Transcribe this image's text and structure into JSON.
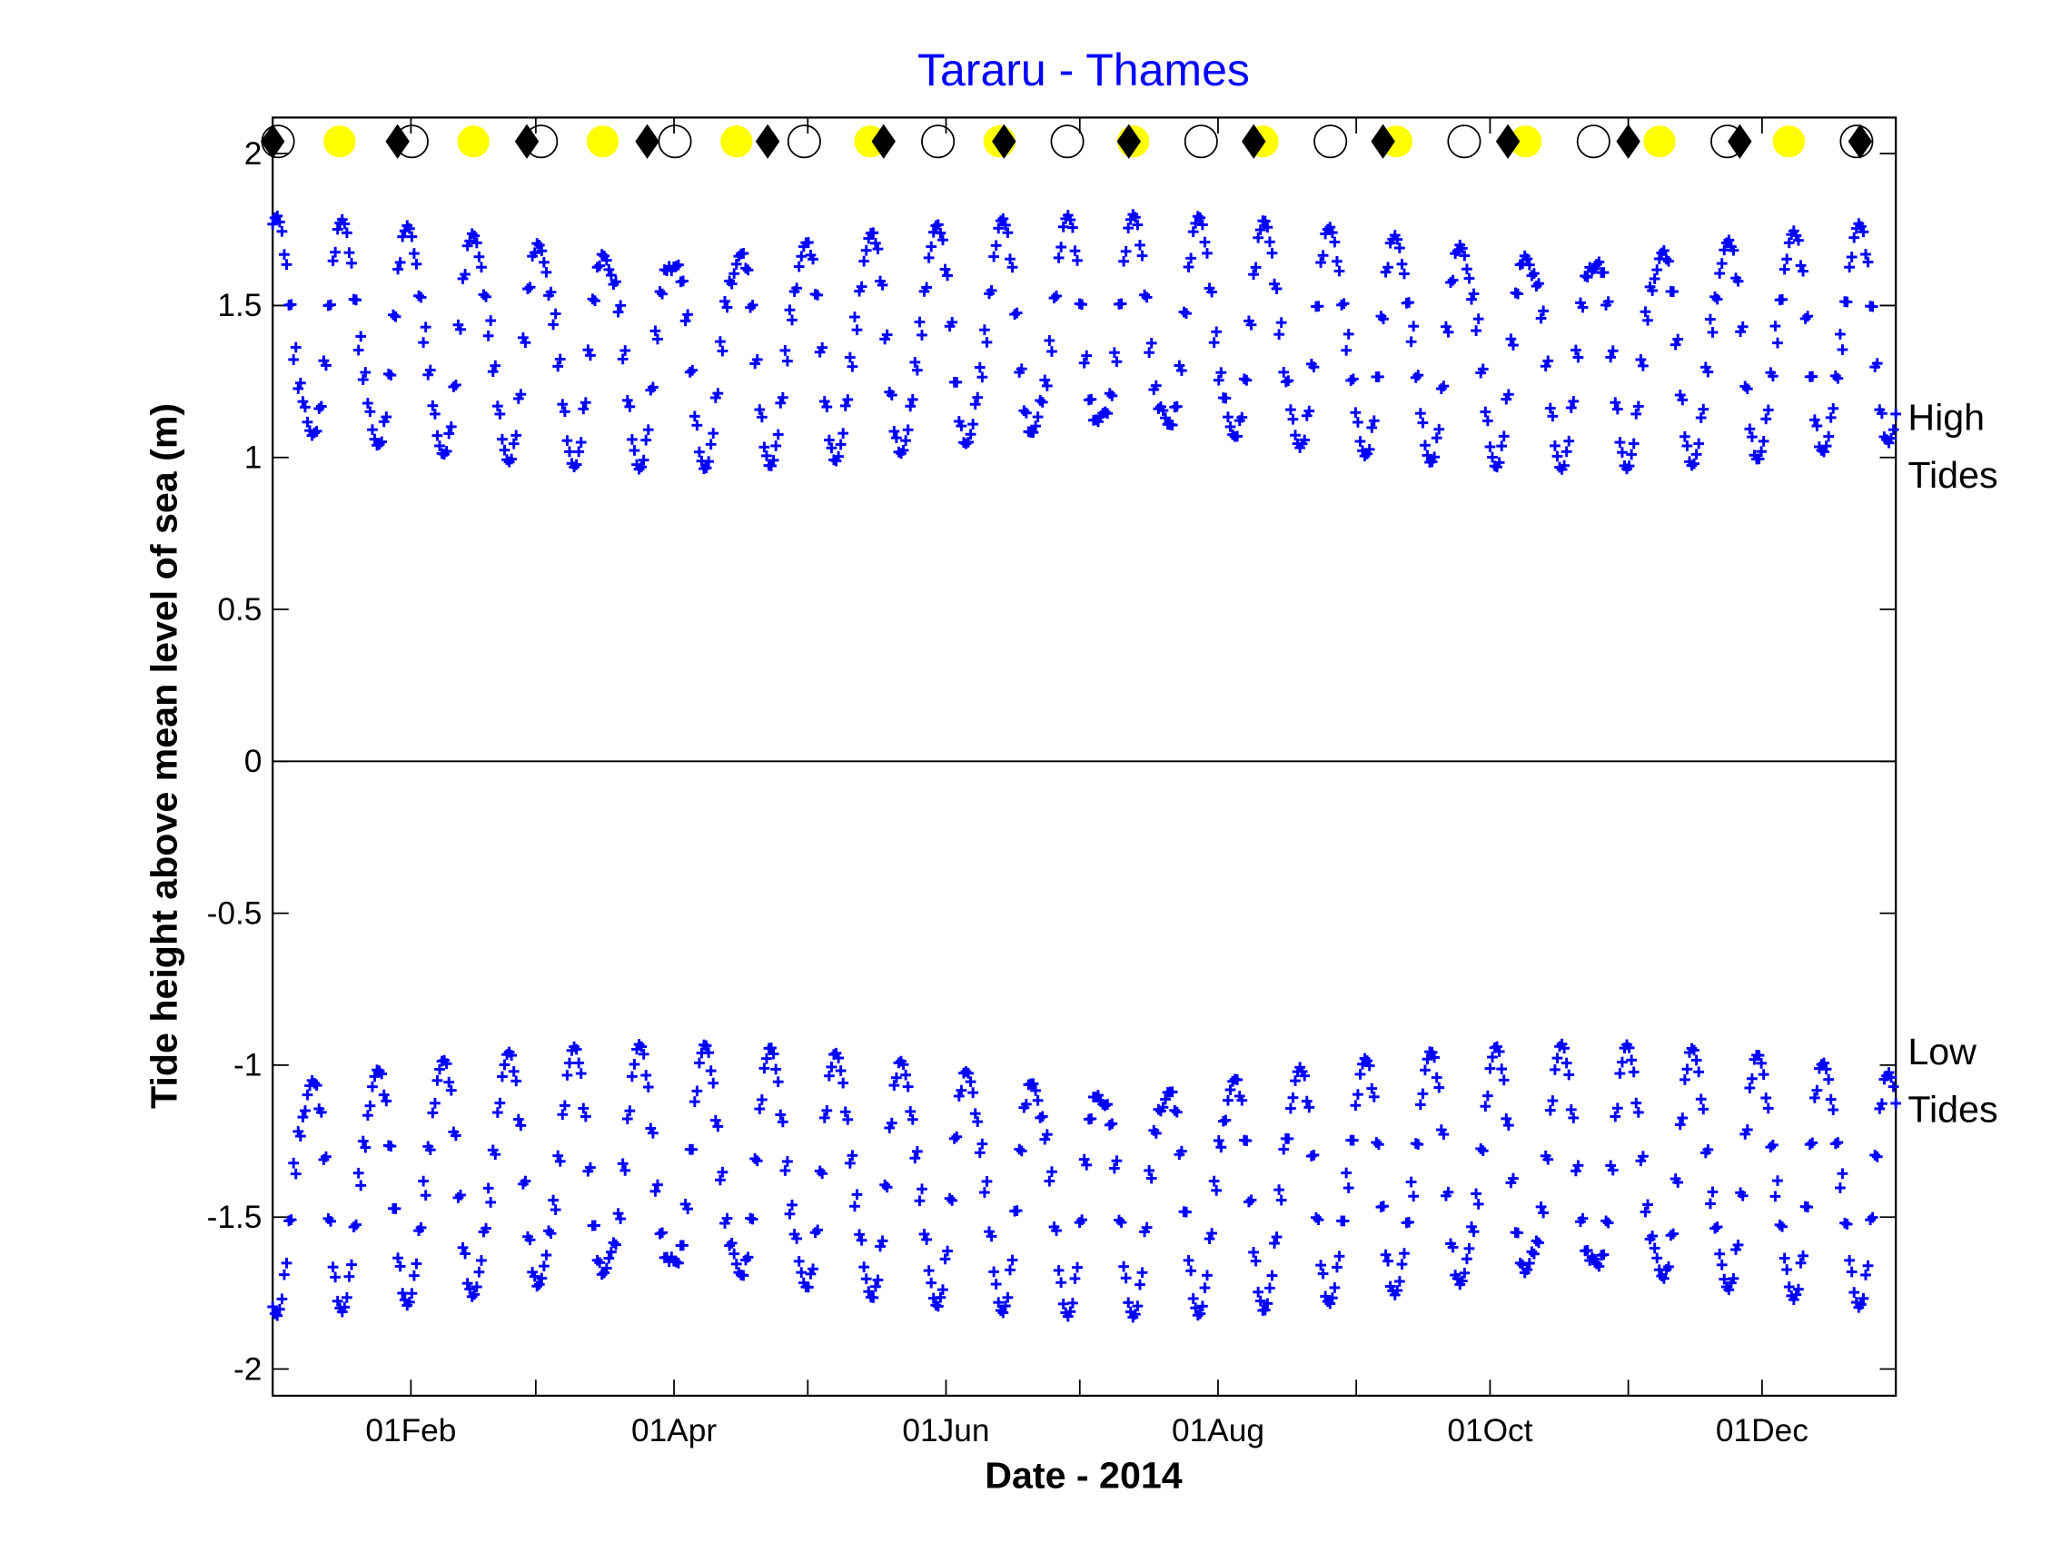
{
  "chart_data": {
    "type": "scatter",
    "title": "Tararu - Thames",
    "xlabel": "Date - 2014",
    "ylabel": "Tide height above mean level of sea (m)",
    "ylim": [
      -2.1,
      2.1
    ],
    "yticks": [
      2,
      1.5,
      1,
      0.5,
      0,
      -0.5,
      -1,
      -1.5,
      -2
    ],
    "ytick_labels": [
      "2",
      "1.5",
      "1",
      "0.5",
      "0",
      "-0.5",
      "-1",
      "-1.5",
      "-2"
    ],
    "xlim_days": [
      1,
      365
    ],
    "xtick_days": [
      32,
      60,
      91,
      121,
      152,
      182,
      213,
      244,
      274,
      305,
      335
    ],
    "xtick_labels": [
      {
        "day": 32,
        "label": "01Feb"
      },
      {
        "day": 91,
        "label": "01Apr"
      },
      {
        "day": 152,
        "label": "01Jun"
      },
      {
        "day": 213,
        "label": "01Aug"
      },
      {
        "day": 274,
        "label": "01Oct"
      },
      {
        "day": 335,
        "label": "01Dec"
      }
    ],
    "grid": false,
    "zero_line": true,
    "side_labels": {
      "high": [
        "High",
        "Tides"
      ],
      "low": [
        "Low",
        "Tides"
      ]
    },
    "series": [
      {
        "name": "High tides",
        "marker": "+",
        "color": "#0000ff",
        "y_range_approx": [
          0.9,
          1.9
        ],
        "mean": 1.38,
        "spring_amp": 0.42,
        "period_days": 14.77
      },
      {
        "name": "Low tides",
        "marker": "+",
        "color": "#0000ff",
        "y_range_approx": [
          -2.0,
          -0.9
        ],
        "mean": -1.38,
        "spring_amp": 0.45,
        "period_days": 14.77
      }
    ],
    "moon_phases": {
      "y": 2.04,
      "full_moon": {
        "marker": "circle",
        "fill": "#ffff00",
        "days": [
          16,
          46,
          75,
          105,
          135,
          164,
          194,
          223,
          253,
          282,
          312,
          341
        ]
      },
      "new_moon": {
        "marker": "circle",
        "fill": "none",
        "edge": "#000000",
        "days": [
          1,
          31,
          60,
          90,
          119,
          149,
          178,
          208,
          237,
          267,
          296,
          326,
          355
        ]
      },
      "perigee": {
        "marker": "diamond",
        "fill": "#000000",
        "days": [
          1,
          29,
          58,
          85,
          112,
          138,
          165,
          193,
          221,
          250,
          278,
          305,
          330,
          357
        ]
      }
    }
  }
}
